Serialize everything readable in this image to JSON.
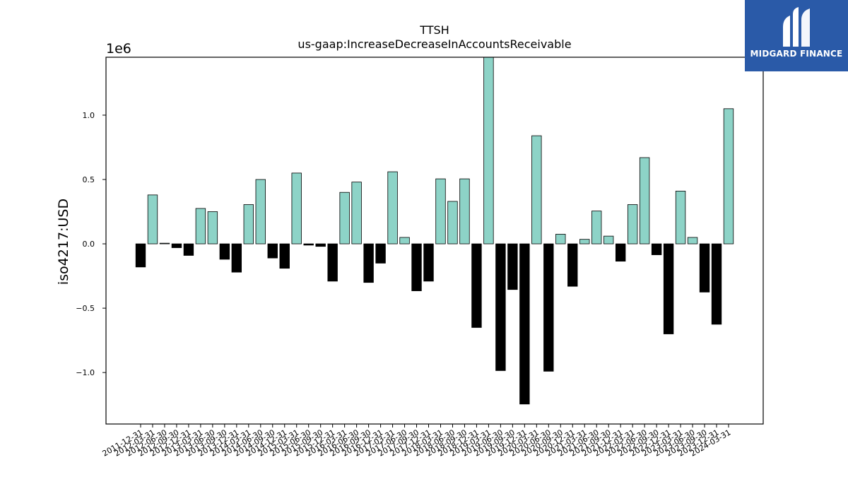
{
  "chart_data": {
    "type": "bar",
    "title": "TTSH",
    "subtitle": "us-gaap:IncreaseDecreaseInAccountsReceivable",
    "ylabel": "iso4217:USD",
    "y_scale_label": "1e6",
    "ylim": [
      -1.4,
      1.45
    ],
    "yticks": [
      -1.0,
      -0.5,
      0.0,
      0.5,
      1.0
    ],
    "ytick_labels": [
      "−1.0",
      "−0.5",
      "0.0",
      "0.5",
      "1.0"
    ],
    "categories": [
      "2011-12-31",
      "2012-03-31",
      "2012-06-30",
      "2012-09-30",
      "2012-12-31",
      "2013-03-31",
      "2013-06-30",
      "2013-09-30",
      "2013-12-31",
      "2014-03-31",
      "2014-06-30",
      "2014-09-30",
      "2014-12-31",
      "2015-03-31",
      "2015-06-30",
      "2015-09-30",
      "2015-12-31",
      "2016-03-31",
      "2016-06-30",
      "2016-09-30",
      "2016-12-31",
      "2017-03-31",
      "2017-06-30",
      "2017-09-30",
      "2017-12-31",
      "2018-03-31",
      "2018-06-30",
      "2018-09-30",
      "2018-12-31",
      "2019-03-31",
      "2019-06-30",
      "2019-09-30",
      "2019-12-31",
      "2020-03-31",
      "2020-06-30",
      "2020-09-30",
      "2020-12-31",
      "2021-03-31",
      "2021-06-30",
      "2021-09-30",
      "2021-12-31",
      "2022-03-31",
      "2022-06-30",
      "2022-09-30",
      "2022-12-31",
      "2023-03-31",
      "2023-06-30",
      "2023-09-30",
      "2023-12-31",
      "2024-03-31"
    ],
    "values": [
      -0.18,
      0.38,
      0.005,
      -0.03,
      -0.09,
      0.275,
      0.25,
      -0.12,
      -0.22,
      0.305,
      0.5,
      -0.11,
      -0.19,
      0.55,
      -0.01,
      -0.02,
      -0.29,
      0.4,
      0.48,
      -0.3,
      -0.15,
      0.56,
      0.05,
      -0.365,
      -0.29,
      0.505,
      0.33,
      0.505,
      -0.65,
      1.47,
      -0.985,
      -0.355,
      -1.245,
      0.84,
      -0.99,
      0.075,
      -0.33,
      0.035,
      0.255,
      0.06,
      -0.135,
      0.305,
      0.67,
      -0.085,
      -0.7,
      0.41,
      0.05,
      -0.375,
      -0.625,
      1.05
    ],
    "colors": {
      "up": "#8dd3c7",
      "down": "#000000",
      "edge": "#000000"
    },
    "grid": false,
    "legend": "none"
  },
  "logo": {
    "name": "MIDGARD FINANCE",
    "color": "#2a5aa8",
    "icon": "midgard-logo-icon"
  }
}
